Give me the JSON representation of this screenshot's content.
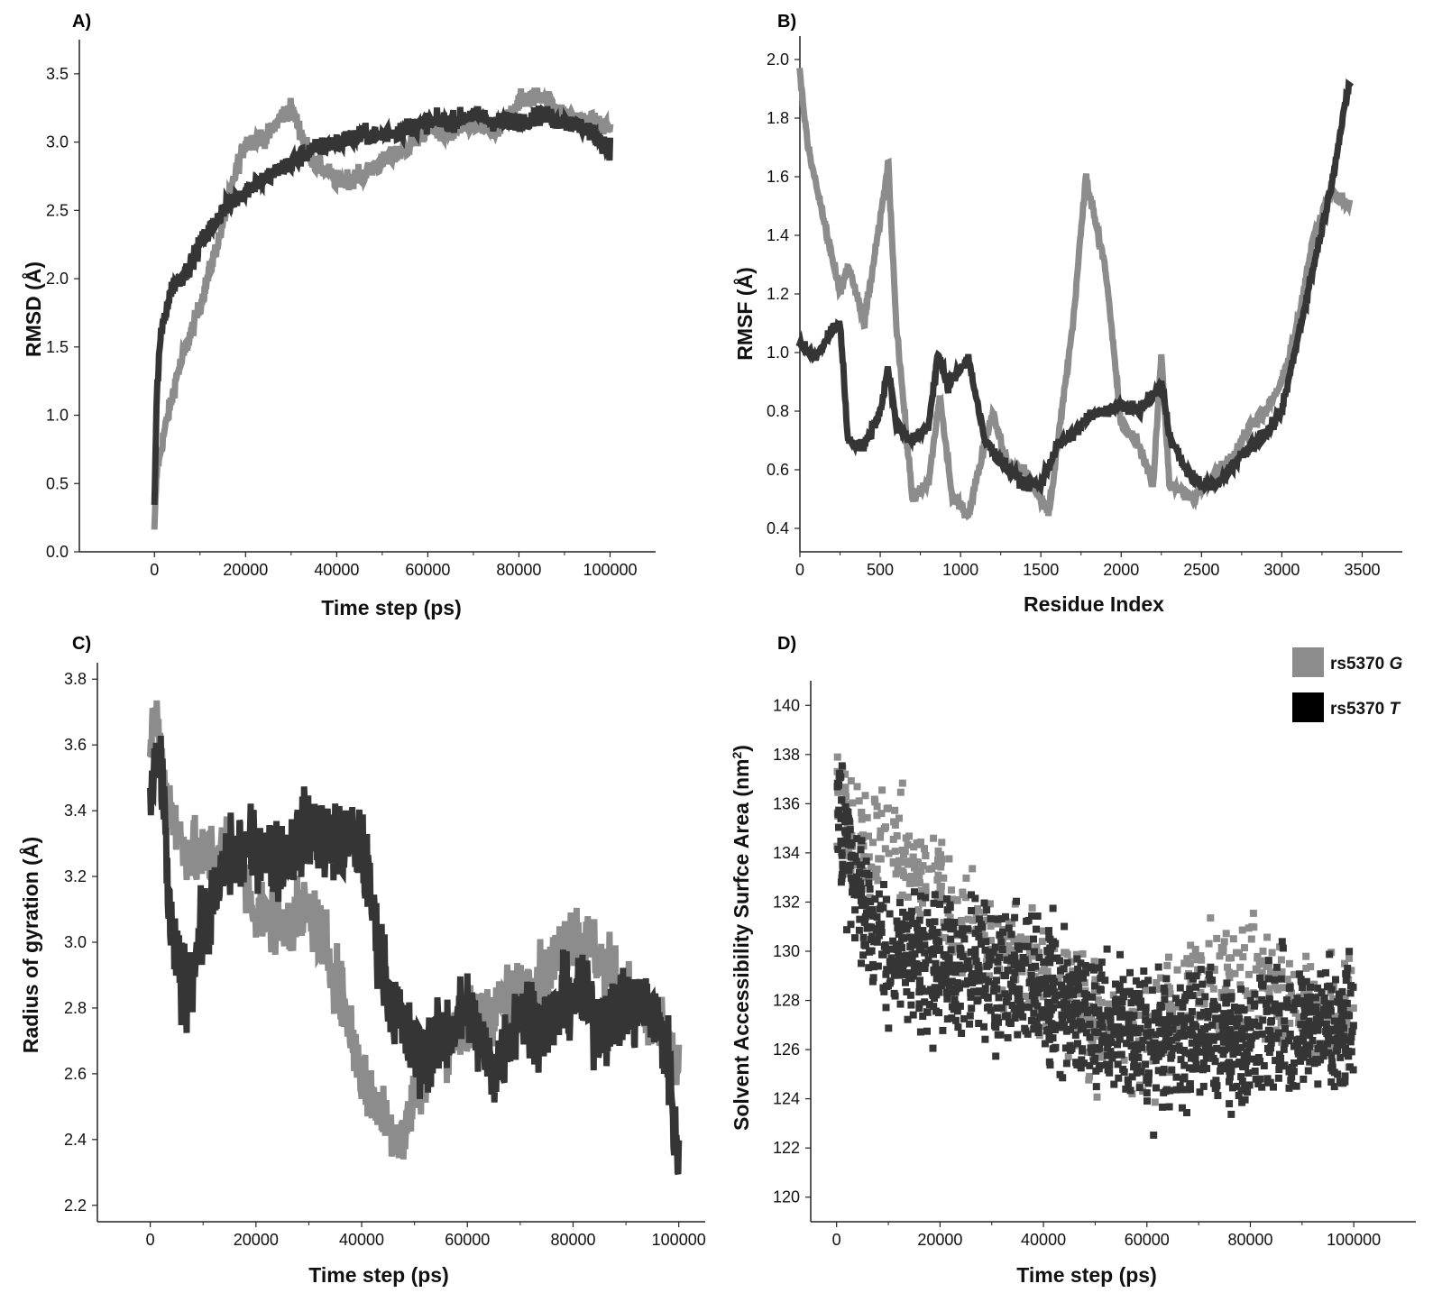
{
  "colors": {
    "G": "#8c8c8c",
    "T": "#353535",
    "axis": "#222222"
  },
  "legend": {
    "items": [
      {
        "key": "G",
        "prefix": "rs5370 ",
        "allele": "G"
      },
      {
        "key": "T",
        "prefix": "rs5370 ",
        "allele": "T"
      }
    ]
  },
  "chart_data": [
    {
      "panel": "A)",
      "type": "line",
      "xlabel": "Time step (ps)",
      "ylabel": "RMSD (Å)",
      "xlim": [
        -5000,
        110000
      ],
      "ylim": [
        0.0,
        3.75
      ],
      "xticks": [
        0,
        20000,
        40000,
        60000,
        80000,
        100000
      ],
      "yticks": [
        0.0,
        0.5,
        1.0,
        1.5,
        2.0,
        2.5,
        3.0,
        3.5
      ],
      "ytick_decimals": 1,
      "series": [
        {
          "key": "G",
          "noise": 0.07,
          "x": [
            0,
            500,
            2000,
            5000,
            10000,
            15000,
            18000,
            20000,
            25000,
            28000,
            30000,
            33000,
            35000,
            38000,
            40000,
            45000,
            50000,
            55000,
            60000,
            65000,
            70000,
            75000,
            80000,
            85000,
            90000,
            95000,
            100000
          ],
          "y": [
            0.15,
            0.6,
            0.85,
            1.3,
            1.8,
            2.4,
            2.8,
            3.0,
            3.05,
            3.2,
            3.25,
            3.0,
            2.85,
            2.78,
            2.72,
            2.75,
            2.85,
            2.95,
            3.1,
            3.05,
            3.15,
            3.05,
            3.3,
            3.35,
            3.2,
            3.15,
            3.1
          ]
        },
        {
          "key": "T",
          "noise": 0.07,
          "x": [
            0,
            500,
            1000,
            2000,
            4000,
            7000,
            10000,
            15000,
            20000,
            25000,
            30000,
            35000,
            40000,
            45000,
            50000,
            55000,
            60000,
            65000,
            70000,
            75000,
            80000,
            85000,
            90000,
            95000,
            100000
          ],
          "y": [
            0.35,
            1.1,
            1.45,
            1.7,
            1.95,
            2.05,
            2.25,
            2.5,
            2.65,
            2.75,
            2.85,
            2.95,
            3.0,
            3.05,
            3.05,
            3.1,
            3.15,
            3.15,
            3.2,
            3.15,
            3.15,
            3.2,
            3.15,
            3.1,
            2.95
          ]
        }
      ]
    },
    {
      "panel": "B)",
      "type": "line",
      "xlabel": "Residue Index",
      "ylabel": "RMSF (Å)",
      "xlim": [
        0,
        3750
      ],
      "ylim": [
        0.32,
        2.08
      ],
      "xticks": [
        0,
        500,
        1000,
        1500,
        2000,
        2500,
        3000,
        3500
      ],
      "yticks": [
        0.4,
        0.6,
        0.8,
        1.0,
        1.2,
        1.4,
        1.6,
        1.8,
        2.0
      ],
      "ytick_decimals": 1,
      "series": [
        {
          "key": "G",
          "noise": 0.02,
          "x": [
            0,
            50,
            150,
            250,
            300,
            400,
            500,
            550,
            600,
            700,
            800,
            870,
            950,
            1050,
            1200,
            1300,
            1400,
            1550,
            1700,
            1780,
            1900,
            2000,
            2100,
            2200,
            2250,
            2300,
            2450,
            2600,
            2700,
            2800,
            2900,
            3000,
            3100,
            3200,
            3300,
            3420
          ],
          "y": [
            1.95,
            1.7,
            1.45,
            1.2,
            1.3,
            1.1,
            1.45,
            1.65,
            1.1,
            0.5,
            0.55,
            0.85,
            0.5,
            0.45,
            0.8,
            0.6,
            0.6,
            0.45,
            1.1,
            1.6,
            1.3,
            0.75,
            0.7,
            0.55,
            1.0,
            0.55,
            0.5,
            0.6,
            0.65,
            0.75,
            0.8,
            0.9,
            1.1,
            1.4,
            1.55,
            1.5
          ]
        },
        {
          "key": "T",
          "noise": 0.02,
          "x": [
            0,
            100,
            200,
            250,
            300,
            400,
            500,
            550,
            600,
            700,
            800,
            860,
            920,
            1000,
            1050,
            1150,
            1300,
            1400,
            1500,
            1600,
            1700,
            1800,
            1900,
            2000,
            2100,
            2200,
            2250,
            2300,
            2400,
            2500,
            2600,
            2700,
            2800,
            2900,
            3000,
            3100,
            3200,
            3300,
            3420
          ],
          "y": [
            1.03,
            0.98,
            1.08,
            1.1,
            0.7,
            0.68,
            0.8,
            0.95,
            0.75,
            0.7,
            0.75,
            1.0,
            0.88,
            0.95,
            0.98,
            0.7,
            0.6,
            0.55,
            0.55,
            0.68,
            0.72,
            0.78,
            0.8,
            0.82,
            0.8,
            0.85,
            0.9,
            0.72,
            0.6,
            0.55,
            0.55,
            0.62,
            0.68,
            0.72,
            0.8,
            1.05,
            1.3,
            1.55,
            1.92
          ]
        }
      ]
    },
    {
      "panel": "C)",
      "type": "line",
      "xlabel": "Time step (ps)",
      "ylabel": "Radius of gyration (Å)",
      "xlim": [
        -10000,
        105000
      ],
      "ylim": [
        2.15,
        3.85
      ],
      "xticks": [
        0,
        20000,
        40000,
        60000,
        80000,
        100000
      ],
      "yticks": [
        2.2,
        2.4,
        2.6,
        2.8,
        3.0,
        3.2,
        3.4,
        3.6,
        3.8
      ],
      "ytick_decimals": 1,
      "series": [
        {
          "key": "G",
          "noise": 0.1,
          "x": [
            0,
            1000,
            3000,
            6000,
            10000,
            15000,
            20000,
            25000,
            30000,
            33000,
            36000,
            40000,
            45000,
            48000,
            50000,
            55000,
            60000,
            65000,
            70000,
            75000,
            80000,
            85000,
            90000,
            95000,
            100000
          ],
          "y": [
            3.6,
            3.7,
            3.45,
            3.3,
            3.25,
            3.3,
            3.1,
            3.05,
            3.1,
            3.0,
            2.85,
            2.6,
            2.45,
            2.4,
            2.55,
            2.7,
            2.75,
            2.8,
            2.85,
            2.9,
            3.05,
            2.95,
            2.85,
            2.75,
            2.6
          ]
        },
        {
          "key": "T",
          "noise": 0.12,
          "x": [
            0,
            2000,
            4000,
            7000,
            10000,
            15000,
            20000,
            25000,
            30000,
            35000,
            40000,
            42000,
            45000,
            50000,
            55000,
            60000,
            65000,
            70000,
            75000,
            80000,
            85000,
            90000,
            95000,
            98000,
            100000
          ],
          "y": [
            3.45,
            3.55,
            3.0,
            2.85,
            3.05,
            3.25,
            3.3,
            3.25,
            3.35,
            3.3,
            3.3,
            3.1,
            2.85,
            2.65,
            2.7,
            2.8,
            2.6,
            2.8,
            2.75,
            2.85,
            2.75,
            2.8,
            2.8,
            2.65,
            2.3
          ]
        }
      ]
    },
    {
      "panel": "D)",
      "type": "scatter",
      "xlabel": "Time step (ps)",
      "ylabel": "Solvent Accessibility Surfce Area (nm²)",
      "xlim": [
        -5000,
        112000
      ],
      "ylim": [
        119,
        141
      ],
      "xticks": [
        0,
        20000,
        40000,
        60000,
        80000,
        100000
      ],
      "yticks": [
        120,
        122,
        124,
        126,
        128,
        130,
        132,
        134,
        136,
        138,
        140
      ],
      "ytick_decimals": 0,
      "series": [
        {
          "key": "G",
          "spread": 2.2,
          "count": 700,
          "x": [
            0,
            5000,
            10000,
            15000,
            20000,
            25000,
            30000,
            40000,
            50000,
            60000,
            70000,
            80000,
            90000,
            100000
          ],
          "y": [
            136,
            134,
            135,
            133,
            133,
            131,
            130.5,
            129,
            127,
            126.5,
            129,
            129,
            127.5,
            127.5
          ]
        },
        {
          "key": "T",
          "spread": 2.6,
          "count": 1500,
          "x": [
            0,
            5000,
            10000,
            20000,
            30000,
            40000,
            50000,
            60000,
            70000,
            80000,
            90000,
            100000
          ],
          "y": [
            136,
            132,
            130,
            129.5,
            129,
            128.5,
            127,
            126.5,
            126.5,
            126.5,
            127,
            127
          ]
        }
      ]
    }
  ]
}
